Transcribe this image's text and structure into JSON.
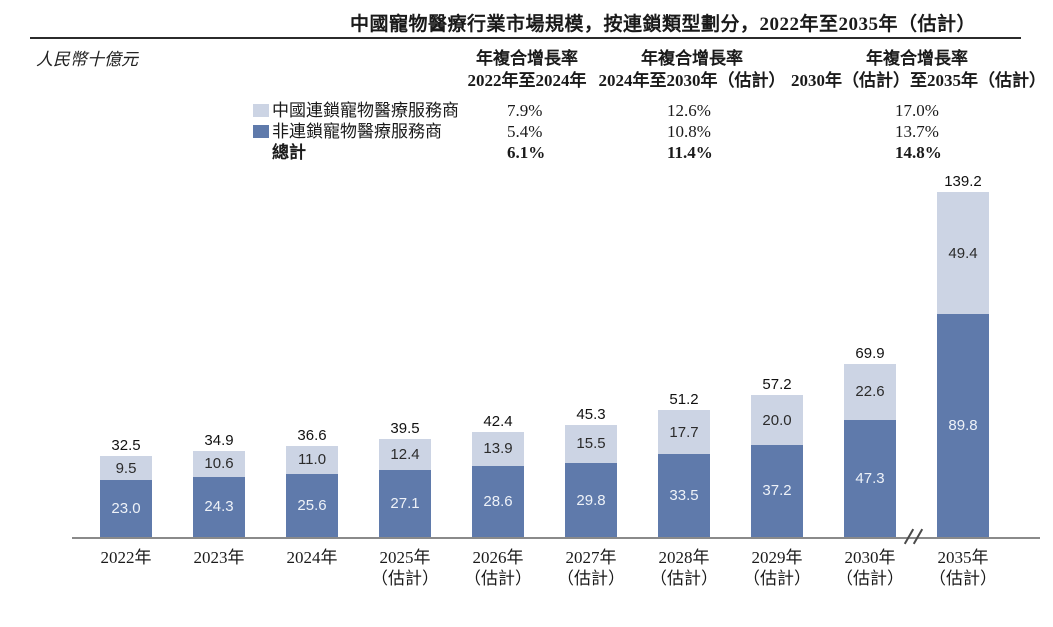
{
  "title": "中國寵物醫療行業市場規模，按連鎖類型劃分，2022年至2035年（估計）",
  "units_label": "人民幣十億元",
  "cagr_table": {
    "columns": [
      {
        "line1": "年複合增長率",
        "line2": "2022年至2024年"
      },
      {
        "line1": "年複合增長率",
        "line2": "2024年至2030年（估計）"
      },
      {
        "line1": "年複合增長率",
        "line2": "2030年（估計）至2035年（估計）"
      }
    ],
    "rows": [
      {
        "label": "中國連鎖寵物醫療服務商",
        "values": [
          "7.9%",
          "12.6%",
          "17.0%"
        ]
      },
      {
        "label": "非連鎖寵物醫療服務商",
        "values": [
          "5.4%",
          "10.8%",
          "13.7%"
        ]
      },
      {
        "label": "總計",
        "values": [
          "6.1%",
          "11.4%",
          "14.8%"
        ]
      }
    ]
  },
  "chart_data": {
    "type": "bar",
    "stacked": true,
    "title": "中國寵物醫療行業市場規模，按連鎖類型劃分，2022年至2035年（估計）",
    "ylabel": "人民幣十億元",
    "categories": [
      [
        "2022年"
      ],
      [
        "2023年"
      ],
      [
        "2024年"
      ],
      [
        "2025年",
        "（估計）"
      ],
      [
        "2026年",
        "（估計）"
      ],
      [
        "2027年",
        "（估計）"
      ],
      [
        "2028年",
        "（估計）"
      ],
      [
        "2029年",
        "（估計）"
      ],
      [
        "2030年",
        "（估計）"
      ],
      [
        "2035年",
        "（估計）"
      ]
    ],
    "series": [
      {
        "name": "中國連鎖寵物醫療服務商",
        "color": "#ccd4e4",
        "values": [
          9.5,
          10.6,
          11.0,
          12.4,
          13.9,
          15.5,
          17.7,
          20.0,
          22.6,
          49.4
        ]
      },
      {
        "name": "非連鎖寵物醫療服務商",
        "color": "#5f7aab",
        "values": [
          23.0,
          24.3,
          25.6,
          27.1,
          28.6,
          29.8,
          33.5,
          37.2,
          47.3,
          89.8
        ]
      }
    ],
    "totals": [
      32.5,
      34.9,
      36.6,
      39.5,
      42.4,
      45.3,
      51.2,
      57.2,
      69.9,
      139.2
    ],
    "axis_break_after_index": 8,
    "legend_position": "top-left",
    "grid": false
  }
}
